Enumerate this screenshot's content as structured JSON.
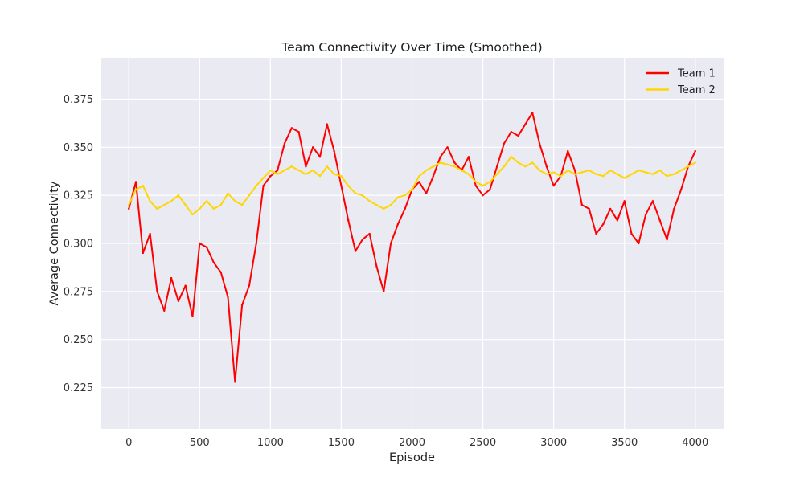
{
  "chart_data": {
    "type": "line",
    "title": "Team Connectivity Over Time (Smoothed)",
    "xlabel": "Episode",
    "ylabel": "Average Connectivity",
    "xlim": [
      -200,
      4200
    ],
    "ylim": [
      0.2035,
      0.3965
    ],
    "xticks": [
      0,
      500,
      1000,
      1500,
      2000,
      2500,
      3000,
      3500,
      4000
    ],
    "yticks": [
      0.225,
      0.25,
      0.275,
      0.3,
      0.325,
      0.35,
      0.375
    ],
    "ytick_labels": [
      "0.225",
      "0.250",
      "0.275",
      "0.300",
      "0.325",
      "0.350",
      "0.375"
    ],
    "grid": true,
    "legend_position": "top-right",
    "background": "#eaeaf2",
    "series": [
      {
        "name": "Team 1",
        "color": "#ff0000",
        "x": [
          0,
          50,
          100,
          150,
          200,
          250,
          300,
          350,
          400,
          450,
          500,
          550,
          600,
          650,
          700,
          750,
          800,
          850,
          900,
          950,
          1000,
          1050,
          1100,
          1150,
          1200,
          1250,
          1300,
          1350,
          1400,
          1450,
          1500,
          1550,
          1600,
          1650,
          1700,
          1750,
          1800,
          1850,
          1900,
          1950,
          2000,
          2050,
          2100,
          2150,
          2200,
          2250,
          2300,
          2350,
          2400,
          2450,
          2500,
          2550,
          2600,
          2650,
          2700,
          2750,
          2800,
          2850,
          2900,
          2950,
          3000,
          3050,
          3100,
          3150,
          3200,
          3250,
          3300,
          3350,
          3400,
          3450,
          3500,
          3550,
          3600,
          3650,
          3700,
          3750,
          3800,
          3850,
          3900,
          3950,
          4000
        ],
        "values": [
          0.318,
          0.332,
          0.295,
          0.305,
          0.275,
          0.265,
          0.282,
          0.27,
          0.278,
          0.262,
          0.3,
          0.298,
          0.29,
          0.285,
          0.272,
          0.228,
          0.268,
          0.278,
          0.3,
          0.33,
          0.335,
          0.338,
          0.352,
          0.36,
          0.358,
          0.34,
          0.35,
          0.345,
          0.362,
          0.348,
          0.33,
          0.312,
          0.296,
          0.302,
          0.305,
          0.288,
          0.275,
          0.3,
          0.31,
          0.318,
          0.328,
          0.332,
          0.326,
          0.335,
          0.345,
          0.35,
          0.342,
          0.338,
          0.345,
          0.33,
          0.325,
          0.328,
          0.34,
          0.352,
          0.358,
          0.356,
          0.362,
          0.368,
          0.352,
          0.34,
          0.33,
          0.335,
          0.348,
          0.338,
          0.32,
          0.318,
          0.305,
          0.31,
          0.318,
          0.312,
          0.322,
          0.305,
          0.3,
          0.315,
          0.322,
          0.312,
          0.302,
          0.318,
          0.328,
          0.34,
          0.348
        ]
      },
      {
        "name": "Team 2",
        "color": "#ffd700",
        "x": [
          0,
          50,
          100,
          150,
          200,
          250,
          300,
          350,
          400,
          450,
          500,
          550,
          600,
          650,
          700,
          750,
          800,
          850,
          900,
          950,
          1000,
          1050,
          1100,
          1150,
          1200,
          1250,
          1300,
          1350,
          1400,
          1450,
          1500,
          1550,
          1600,
          1650,
          1700,
          1750,
          1800,
          1850,
          1900,
          1950,
          2000,
          2050,
          2100,
          2150,
          2200,
          2250,
          2300,
          2350,
          2400,
          2450,
          2500,
          2550,
          2600,
          2650,
          2700,
          2750,
          2800,
          2850,
          2900,
          2950,
          3000,
          3050,
          3100,
          3150,
          3200,
          3250,
          3300,
          3350,
          3400,
          3450,
          3500,
          3550,
          3600,
          3650,
          3700,
          3750,
          3800,
          3850,
          3900,
          3950,
          4000
        ],
        "values": [
          0.32,
          0.328,
          0.33,
          0.322,
          0.318,
          0.32,
          0.322,
          0.325,
          0.32,
          0.315,
          0.318,
          0.322,
          0.318,
          0.32,
          0.326,
          0.322,
          0.32,
          0.325,
          0.33,
          0.334,
          0.338,
          0.336,
          0.338,
          0.34,
          0.338,
          0.336,
          0.338,
          0.335,
          0.34,
          0.336,
          0.335,
          0.33,
          0.326,
          0.325,
          0.322,
          0.32,
          0.318,
          0.32,
          0.324,
          0.325,
          0.328,
          0.335,
          0.338,
          0.34,
          0.342,
          0.341,
          0.34,
          0.338,
          0.336,
          0.332,
          0.33,
          0.332,
          0.336,
          0.34,
          0.345,
          0.342,
          0.34,
          0.342,
          0.338,
          0.336,
          0.337,
          0.335,
          0.338,
          0.336,
          0.337,
          0.338,
          0.336,
          0.335,
          0.338,
          0.336,
          0.334,
          0.336,
          0.338,
          0.337,
          0.336,
          0.338,
          0.335,
          0.336,
          0.338,
          0.34,
          0.342
        ]
      }
    ]
  }
}
